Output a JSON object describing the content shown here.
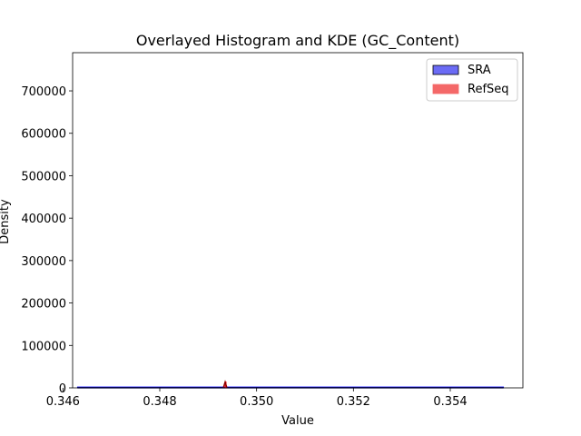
{
  "chart_data": {
    "type": "area",
    "title": "Overlayed Histogram and KDE (GC_Content)",
    "xlabel": "Value",
    "ylabel": "Density",
    "xlim": [
      0.3462,
      0.3555
    ],
    "ylim": [
      0,
      790000
    ],
    "x_ticks": [
      0.346,
      0.348,
      0.35,
      0.352,
      0.354
    ],
    "x_tick_labels": [
      "0.346",
      "0.348",
      "0.350",
      "0.352",
      "0.354"
    ],
    "y_ticks": [
      0,
      100000,
      200000,
      300000,
      400000,
      500000,
      600000,
      700000
    ],
    "y_tick_labels": [
      "0",
      "100000",
      "200000",
      "300000",
      "400000",
      "500000",
      "600000",
      "700000"
    ],
    "grid": false,
    "legend_position": "top-right",
    "legend": [
      {
        "label": "SRA",
        "color": "#6b6bf5",
        "edge": "#000000"
      },
      {
        "label": "RefSeq",
        "color": "#f46868",
        "edge": "#f46868"
      }
    ],
    "series": [
      {
        "name": "SRA",
        "kind": "histogram",
        "color": "#0000ff",
        "bins": [
          0.3463,
          0.3551
        ],
        "heights": [
          300
        ]
      },
      {
        "name": "SRA",
        "kind": "kde",
        "color": "#00008b",
        "x": [
          0.3463,
          0.3551
        ],
        "y": [
          300,
          300
        ]
      },
      {
        "name": "RefSeq",
        "kind": "histogram",
        "color": "#ff0000",
        "bins": [
          0.34935,
          0.34937
        ],
        "heights": [
          14000
        ]
      },
      {
        "name": "RefSeq",
        "kind": "kde",
        "color": "#8b0000",
        "x": [
          0.34935
        ],
        "y": [
          14000
        ]
      }
    ]
  }
}
